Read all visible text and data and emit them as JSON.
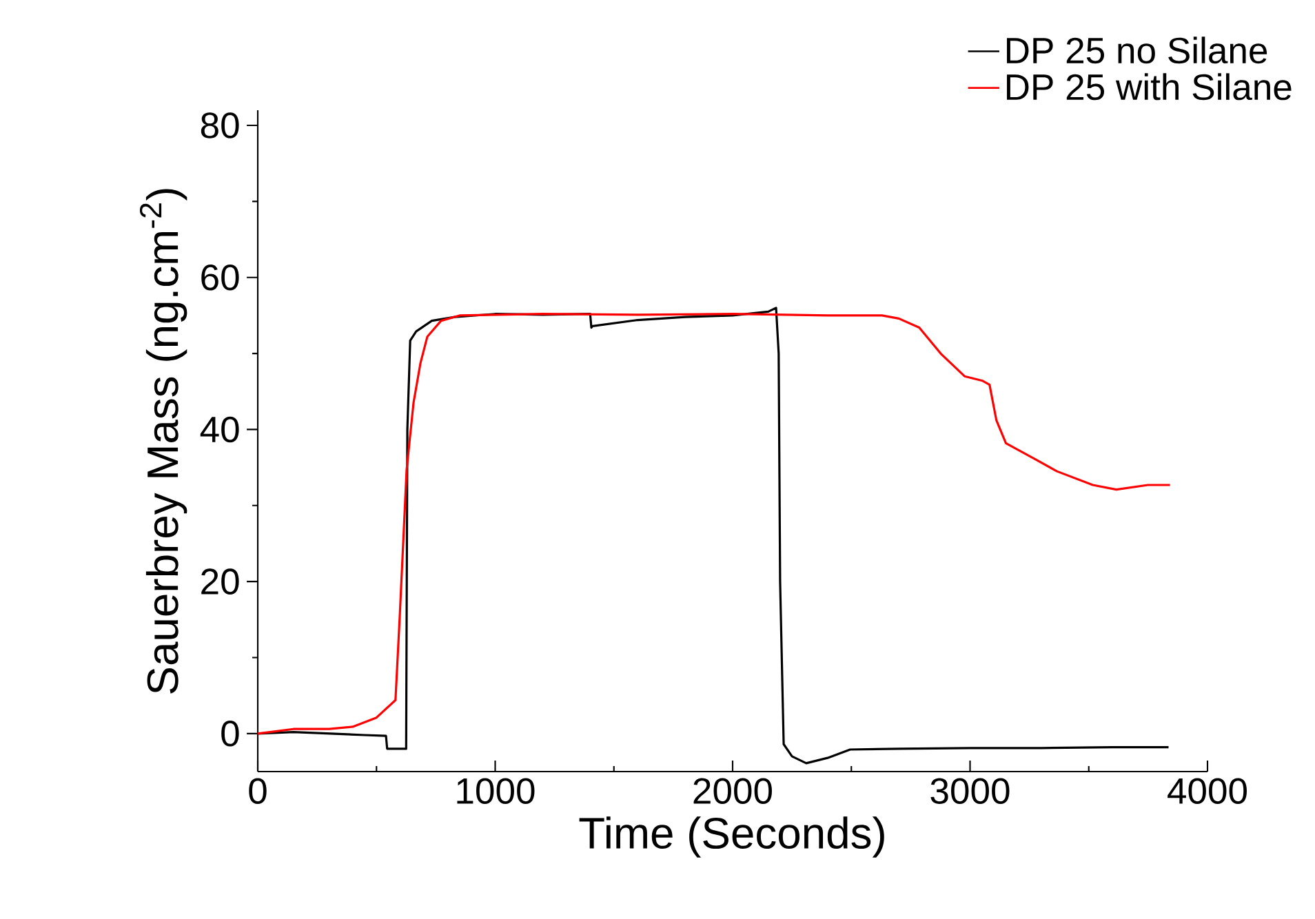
{
  "chart_data": {
    "type": "line",
    "xlabel": "Time (Seconds)",
    "ylabel": "Sauerbrey Mass (ng.cm$^{-2}$)",
    "xlim": [
      0,
      4000
    ],
    "ylim": [
      -5,
      82
    ],
    "xticks": [
      0,
      1000,
      2000,
      3000,
      4000
    ],
    "yticks": [
      0,
      20,
      40,
      60,
      80
    ],
    "legend": "top right",
    "series": [
      {
        "name": "DP 25 no Silane",
        "color": "#000000",
        "x": [
          0,
          150,
          300,
          450,
          540,
          545,
          600,
          625,
          630,
          642,
          667,
          733,
          830,
          1000,
          1200,
          1400,
          1405,
          1410,
          1600,
          1800,
          2000,
          2150,
          2183,
          2194,
          2200,
          2215,
          2250,
          2310,
          2400,
          2495,
          2700,
          3000,
          3300,
          3600,
          3836
        ],
        "values": [
          0,
          0.2,
          0,
          -0.2,
          -0.3,
          -2,
          -2,
          -2,
          40,
          51.7,
          52.9,
          54.3,
          54.8,
          55.2,
          55.1,
          55.2,
          53.4,
          53.6,
          54.4,
          54.8,
          55,
          55.5,
          56,
          50,
          20,
          -1.4,
          -3,
          -3.9,
          -3.2,
          -2.1,
          -2,
          -1.9,
          -1.9,
          -1.8,
          -1.8
        ]
      },
      {
        "name": "DP 25 with Silane",
        "color": "#ff0000",
        "x": [
          0,
          150,
          300,
          400,
          500,
          580,
          598,
          627,
          656,
          685,
          714,
          772,
          850,
          1200,
          1600,
          2000,
          2400,
          2629,
          2700,
          2786,
          2879,
          2977,
          3053,
          3082,
          3111,
          3151,
          3268,
          3366,
          3517,
          3616,
          3749,
          3842
        ],
        "values": [
          0,
          0.6,
          0.6,
          0.9,
          2.1,
          4.4,
          15.4,
          34.7,
          43.5,
          48.7,
          52.2,
          54.3,
          55,
          55.2,
          55.1,
          55.2,
          55,
          55,
          54.6,
          53.4,
          49.9,
          47,
          46.4,
          45.9,
          41.2,
          38.2,
          36.2,
          34.5,
          32.7,
          32.1,
          32.7,
          32.7
        ]
      }
    ]
  }
}
